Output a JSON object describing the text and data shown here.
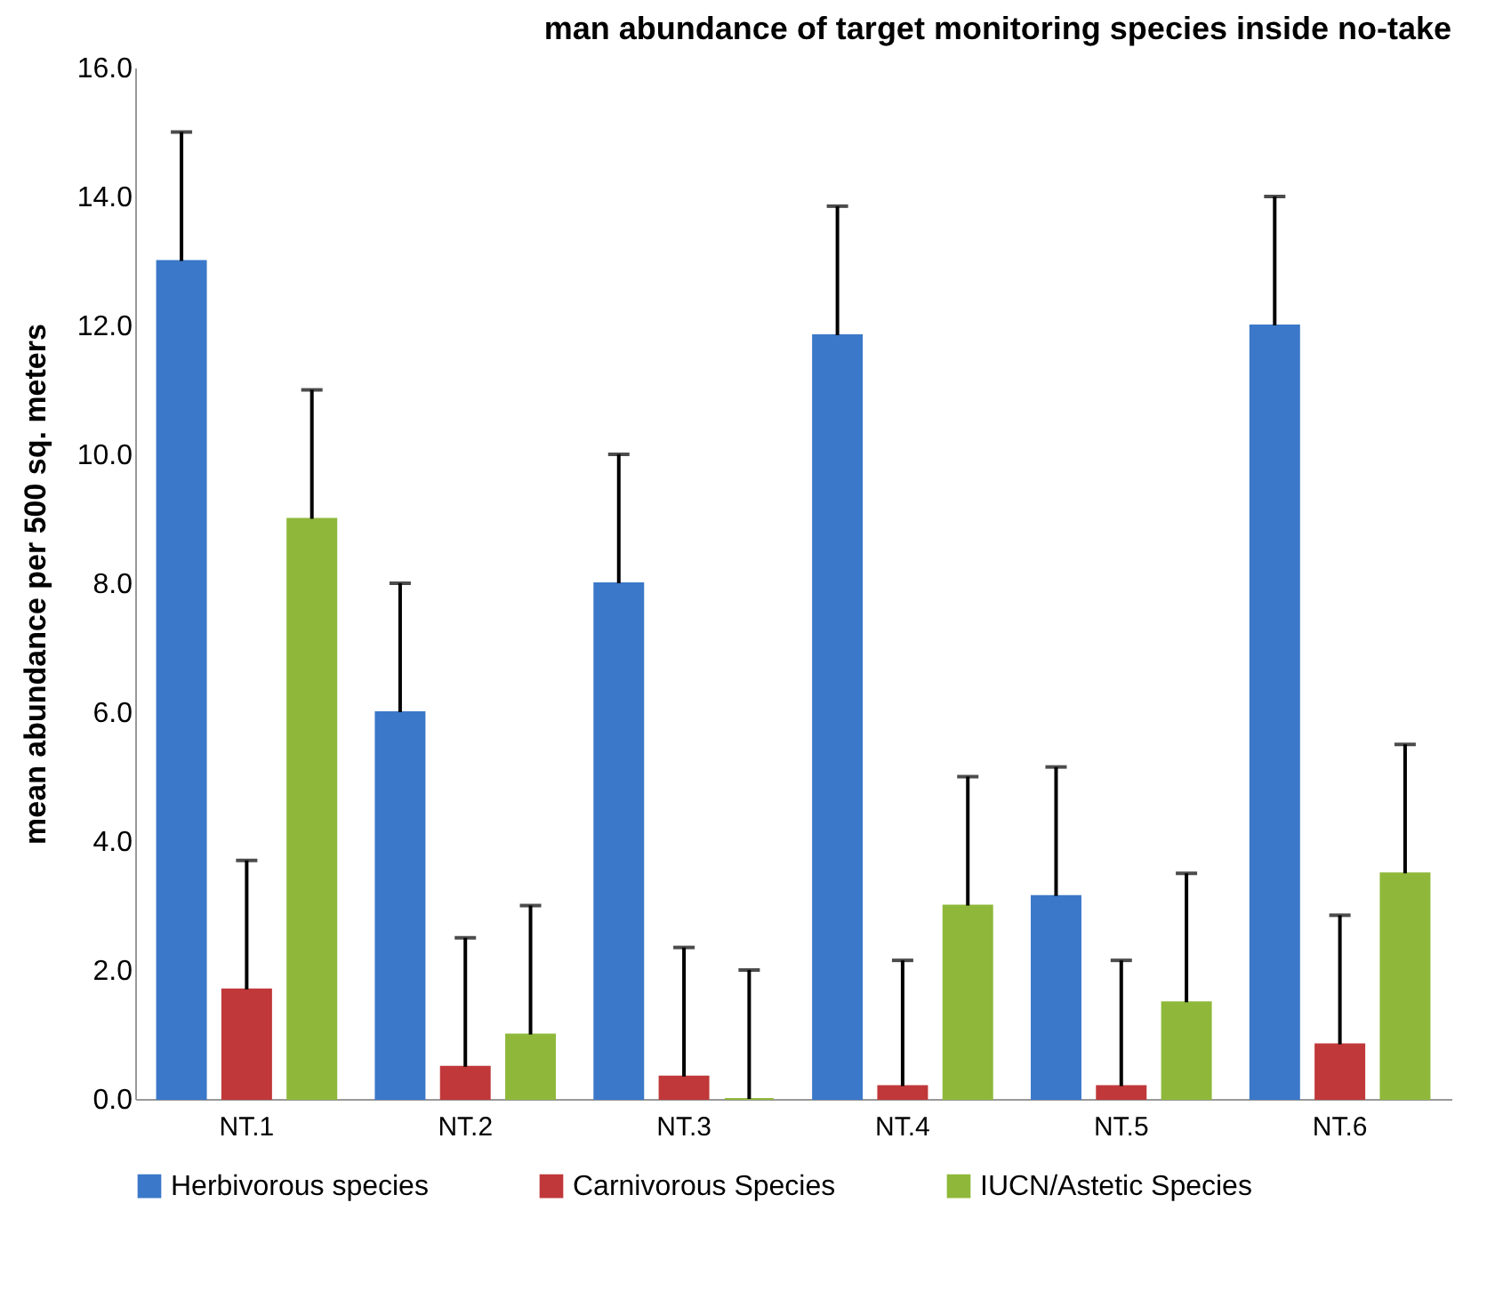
{
  "chart_data": {
    "type": "bar",
    "title": "man abundance of target monitoring species inside no-take",
    "ylabel": "mean abundance per 500 sq. meters",
    "categories": [
      "NT.1",
      "NT.2",
      "NT.3",
      "NT.4",
      "NT.5",
      "NT.6"
    ],
    "series": [
      {
        "name": "Herbivorous species",
        "color": "#3b78c9",
        "values": [
          13,
          6,
          8,
          11.85,
          3.15,
          12
        ],
        "errors": [
          [
            13,
            15
          ],
          [
            6,
            8
          ],
          [
            8,
            10
          ],
          [
            11.85,
            13.85
          ],
          [
            3.15,
            5.15
          ],
          [
            12,
            14
          ]
        ]
      },
      {
        "name": "Carnivorous Species",
        "color": "#c0383a",
        "values": [
          1.7,
          0.5,
          0.35,
          0.2,
          0.2,
          0.85
        ],
        "errors": [
          [
            1.7,
            3.7
          ],
          [
            0.5,
            2.5
          ],
          [
            0.35,
            2.35
          ],
          [
            0.2,
            2.15
          ],
          [
            0.2,
            2.15
          ],
          [
            0.85,
            2.85
          ]
        ]
      },
      {
        "name": "IUCN/Astetic Species",
        "color": "#8fb83a",
        "values": [
          9,
          1,
          0,
          3,
          1.5,
          3.5
        ],
        "errors": [
          [
            9,
            11
          ],
          [
            1,
            3
          ],
          [
            0,
            2
          ],
          [
            3,
            5
          ],
          [
            1.5,
            3.5
          ],
          [
            3.5,
            5.5
          ]
        ]
      }
    ],
    "ylim": [
      0,
      16
    ],
    "yticks": [
      {
        "value": 0,
        "label": "0.0"
      },
      {
        "value": 2,
        "label": "2.0"
      },
      {
        "value": 4,
        "label": "4.0"
      },
      {
        "value": 6,
        "label": "6.0"
      },
      {
        "value": 8,
        "label": "8.0"
      },
      {
        "value": 10,
        "label": "10.0"
      },
      {
        "value": 12,
        "label": "12.0"
      },
      {
        "value": 14,
        "label": "14.0"
      },
      {
        "value": 16,
        "label": "16.0"
      }
    ],
    "grid": false,
    "legend": "bottom"
  }
}
